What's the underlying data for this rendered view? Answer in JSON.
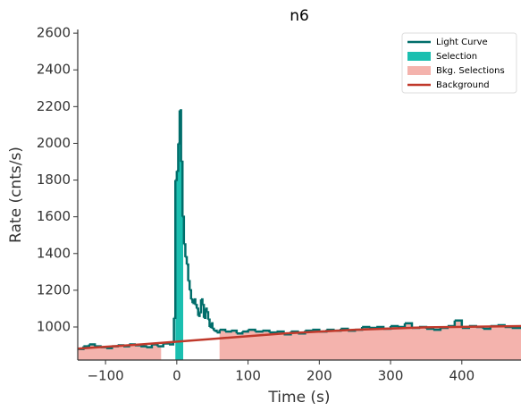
{
  "chart_data": {
    "type": "lightcurve",
    "title": "n6",
    "xlabel": "Time (s)",
    "ylabel": "Rate (cnts/s)",
    "xlim": [
      -139,
      483
    ],
    "ylim": [
      820,
      2620
    ],
    "xticks": [
      {
        "value": -100,
        "label": "−100"
      },
      0,
      100,
      200,
      300,
      400
    ],
    "yticks": [
      1000,
      1200,
      1400,
      1600,
      1800,
      2000,
      2200,
      2400,
      2600
    ],
    "light_curve": {
      "name": "Light Curve",
      "color": "#006d6a",
      "x": [
        -139,
        -131,
        -123,
        -115,
        -107,
        -99,
        -91,
        -83,
        -75,
        -67,
        -59,
        -51,
        -43,
        -35,
        -27,
        -19,
        -11,
        -5,
        -4,
        -2,
        0,
        2,
        4,
        6,
        8,
        10,
        12,
        14,
        16,
        18,
        20,
        22,
        24,
        26,
        28,
        30,
        32,
        34,
        36,
        38,
        40,
        42,
        44,
        46,
        48,
        50,
        52,
        56,
        60,
        68,
        76,
        84,
        92,
        100,
        110,
        120,
        130,
        140,
        150,
        160,
        170,
        180,
        190,
        200,
        210,
        220,
        230,
        240,
        250,
        260,
        270,
        280,
        290,
        300,
        310,
        320,
        330,
        340,
        350,
        360,
        370,
        380,
        390,
        400,
        410,
        420,
        430,
        440,
        450,
        460,
        470
      ],
      "values": [
        880,
        895,
        905,
        895,
        890,
        885,
        895,
        900,
        895,
        905,
        900,
        895,
        890,
        905,
        895,
        910,
        905,
        920,
        1050,
        1800,
        1850,
        2000,
        2180,
        1900,
        1600,
        1450,
        1380,
        1340,
        1250,
        1200,
        1150,
        1130,
        1150,
        1120,
        1100,
        1060,
        1080,
        1150,
        1120,
        1050,
        1100,
        1080,
        1040,
        1000,
        1020,
        990,
        980,
        970,
        985,
        975,
        980,
        965,
        975,
        985,
        975,
        980,
        970,
        975,
        960,
        975,
        965,
        980,
        985,
        975,
        985,
        980,
        990,
        980,
        985,
        1000,
        995,
        1000,
        990,
        1005,
        1000,
        1020,
        995,
        1000,
        990,
        985,
        995,
        1005,
        1035,
        995,
        1005,
        1000,
        990,
        1005,
        1010,
        1000,
        995
      ]
    },
    "selection": {
      "name": "Selection",
      "color": "#1bbfb0",
      "range": [
        -2,
        9
      ]
    },
    "bkg_selections": {
      "name": "Bkg. Selections",
      "color": "#f4b3ad",
      "ranges": [
        [
          -139,
          -22
        ],
        [
          60,
          483
        ]
      ]
    },
    "background": {
      "name": "Background",
      "color": "#c0392b",
      "x": [
        -139,
        -50,
        50,
        150,
        250,
        350,
        483
      ],
      "values": [
        882,
        905,
        935,
        965,
        985,
        998,
        1005
      ]
    }
  }
}
